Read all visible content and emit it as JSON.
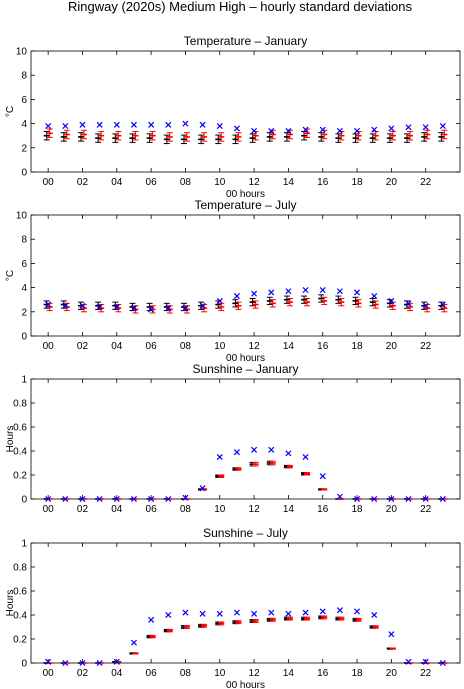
{
  "figure_title": "Ringway (2020s) Medium High – hourly standard deviations",
  "chart_data": [
    {
      "type": "errorbar",
      "title": "Temperature – January",
      "xlabel": "00 hours",
      "ylabel": "°C",
      "ylim": [
        0,
        10
      ],
      "yticks": [
        0,
        2,
        4,
        6,
        8,
        10
      ],
      "xlim": [
        -1,
        24
      ],
      "xtick_labels": [
        "00",
        "02",
        "04",
        "06",
        "08",
        "10",
        "12",
        "14",
        "16",
        "18",
        "20",
        "22"
      ],
      "x": [
        0,
        1,
        2,
        3,
        4,
        5,
        6,
        7,
        8,
        9,
        10,
        11,
        12,
        13,
        14,
        15,
        16,
        17,
        18,
        19,
        20,
        21,
        22,
        23
      ],
      "observed_x": [
        3.8,
        3.8,
        3.9,
        3.9,
        3.9,
        3.9,
        3.9,
        3.9,
        4.0,
        3.9,
        3.8,
        3.6,
        3.4,
        3.4,
        3.4,
        3.5,
        3.5,
        3.4,
        3.4,
        3.5,
        3.6,
        3.7,
        3.7,
        3.8
      ],
      "red_mean": [
        3.2,
        3.1,
        3.1,
        3.0,
        3.0,
        3.0,
        3.0,
        2.9,
        2.9,
        2.9,
        2.9,
        2.9,
        3.0,
        3.1,
        3.1,
        3.2,
        3.1,
        3.0,
        3.0,
        3.0,
        3.0,
        3.0,
        3.1,
        3.1
      ],
      "red_err": [
        0.35,
        0.35,
        0.35,
        0.35,
        0.35,
        0.35,
        0.35,
        0.35,
        0.35,
        0.35,
        0.35,
        0.35,
        0.35,
        0.35,
        0.35,
        0.35,
        0.35,
        0.35,
        0.35,
        0.35,
        0.35,
        0.35,
        0.35,
        0.35
      ],
      "black_mean": [
        3.0,
        2.9,
        2.9,
        2.8,
        2.8,
        2.8,
        2.8,
        2.7,
        2.7,
        2.7,
        2.7,
        2.7,
        2.8,
        2.9,
        2.9,
        3.0,
        2.9,
        2.8,
        2.8,
        2.8,
        2.8,
        2.8,
        2.9,
        2.9
      ],
      "black_err": [
        0.35,
        0.35,
        0.35,
        0.35,
        0.35,
        0.35,
        0.35,
        0.35,
        0.35,
        0.35,
        0.35,
        0.35,
        0.35,
        0.35,
        0.35,
        0.35,
        0.35,
        0.35,
        0.35,
        0.35,
        0.35,
        0.35,
        0.35,
        0.35
      ]
    },
    {
      "type": "errorbar",
      "title": "Temperature – July",
      "xlabel": "00 hours",
      "ylabel": "°C",
      "ylim": [
        0,
        10
      ],
      "yticks": [
        0,
        2,
        4,
        6,
        8,
        10
      ],
      "xlim": [
        -1,
        24
      ],
      "xtick_labels": [
        "00",
        "02",
        "04",
        "06",
        "08",
        "10",
        "12",
        "14",
        "16",
        "18",
        "20",
        "22"
      ],
      "x": [
        0,
        1,
        2,
        3,
        4,
        5,
        6,
        7,
        8,
        9,
        10,
        11,
        12,
        13,
        14,
        15,
        16,
        17,
        18,
        19,
        20,
        21,
        22,
        23
      ],
      "observed_x": [
        2.6,
        2.5,
        2.5,
        2.4,
        2.4,
        2.3,
        2.2,
        2.3,
        2.3,
        2.5,
        2.9,
        3.3,
        3.5,
        3.6,
        3.7,
        3.8,
        3.8,
        3.7,
        3.6,
        3.3,
        2.9,
        2.7,
        2.5,
        2.6
      ],
      "red_mean": [
        2.4,
        2.4,
        2.3,
        2.3,
        2.3,
        2.2,
        2.2,
        2.2,
        2.2,
        2.3,
        2.4,
        2.5,
        2.6,
        2.7,
        2.8,
        2.8,
        2.9,
        2.8,
        2.7,
        2.6,
        2.5,
        2.4,
        2.3,
        2.3
      ],
      "red_err": [
        0.3,
        0.3,
        0.3,
        0.3,
        0.3,
        0.3,
        0.3,
        0.3,
        0.3,
        0.3,
        0.3,
        0.3,
        0.3,
        0.3,
        0.3,
        0.3,
        0.3,
        0.3,
        0.3,
        0.3,
        0.3,
        0.3,
        0.3,
        0.3
      ],
      "black_mean": [
        2.6,
        2.6,
        2.5,
        2.5,
        2.5,
        2.4,
        2.4,
        2.4,
        2.4,
        2.5,
        2.6,
        2.7,
        2.8,
        2.9,
        3.0,
        3.0,
        3.1,
        3.0,
        2.9,
        2.8,
        2.7,
        2.6,
        2.5,
        2.5
      ],
      "black_err": [
        0.3,
        0.3,
        0.3,
        0.3,
        0.3,
        0.3,
        0.3,
        0.3,
        0.3,
        0.3,
        0.3,
        0.3,
        0.3,
        0.3,
        0.3,
        0.3,
        0.3,
        0.3,
        0.3,
        0.3,
        0.3,
        0.3,
        0.3,
        0.3
      ]
    },
    {
      "type": "errorbar",
      "title": "Sunshine – January",
      "xlabel": "",
      "ylabel": "Hours",
      "ylim": [
        0,
        1
      ],
      "yticks": [
        0,
        0.2,
        0.4,
        0.6,
        0.8,
        1
      ],
      "xlim": [
        -1,
        24
      ],
      "xtick_labels": [
        "00",
        "02",
        "04",
        "06",
        "08",
        "10",
        "12",
        "14",
        "16",
        "18",
        "20",
        "22"
      ],
      "x": [
        0,
        1,
        2,
        3,
        4,
        5,
        6,
        7,
        8,
        9,
        10,
        11,
        12,
        13,
        14,
        15,
        16,
        17,
        18,
        19,
        20,
        21,
        22,
        23
      ],
      "observed_x": [
        0,
        0,
        0,
        0,
        0,
        0,
        0,
        0,
        0.01,
        0.09,
        0.35,
        0.39,
        0.41,
        0.41,
        0.38,
        0.35,
        0.19,
        0.02,
        0,
        0,
        0,
        0,
        0,
        0
      ],
      "red_mean": [
        0,
        0,
        0,
        0,
        0,
        0,
        0,
        0,
        0,
        0.08,
        0.19,
        0.25,
        0.29,
        0.3,
        0.27,
        0.21,
        0.08,
        0,
        0,
        0,
        0,
        0,
        0,
        0
      ],
      "red_err": [
        0,
        0,
        0,
        0,
        0,
        0,
        0,
        0,
        0,
        0.005,
        0.01,
        0.01,
        0.015,
        0.015,
        0.01,
        0.01,
        0.005,
        0,
        0,
        0,
        0,
        0,
        0,
        0
      ],
      "black_mean": [
        0,
        0,
        0,
        0,
        0,
        0,
        0,
        0,
        0,
        0.08,
        0.19,
        0.25,
        0.29,
        0.3,
        0.27,
        0.21,
        0.08,
        0,
        0,
        0,
        0,
        0,
        0,
        0
      ],
      "black_err": [
        0,
        0,
        0,
        0,
        0,
        0,
        0,
        0,
        0,
        0.005,
        0.01,
        0.01,
        0.015,
        0.015,
        0.01,
        0.01,
        0.005,
        0,
        0,
        0,
        0,
        0,
        0,
        0
      ]
    },
    {
      "type": "errorbar",
      "title": "Sunshine – July",
      "xlabel": "00 hours",
      "ylabel": "Hours",
      "ylim": [
        0,
        1
      ],
      "yticks": [
        0,
        0.2,
        0.4,
        0.6,
        0.8,
        1
      ],
      "xlim": [
        -1,
        24
      ],
      "xtick_labels": [
        "00",
        "02",
        "04",
        "06",
        "08",
        "10",
        "12",
        "14",
        "16",
        "18",
        "20",
        "22"
      ],
      "x": [
        0,
        1,
        2,
        3,
        4,
        5,
        6,
        7,
        8,
        9,
        10,
        11,
        12,
        13,
        14,
        15,
        16,
        17,
        18,
        19,
        20,
        21,
        22,
        23
      ],
      "observed_x": [
        0.01,
        0,
        0,
        0,
        0.01,
        0.17,
        0.36,
        0.4,
        0.42,
        0.41,
        0.41,
        0.42,
        0.41,
        0.42,
        0.41,
        0.42,
        0.43,
        0.44,
        0.43,
        0.4,
        0.24,
        0.01,
        0.01,
        0
      ],
      "red_mean": [
        0,
        0,
        0,
        0,
        0.01,
        0.08,
        0.22,
        0.27,
        0.3,
        0.31,
        0.33,
        0.34,
        0.35,
        0.36,
        0.37,
        0.37,
        0.38,
        0.37,
        0.36,
        0.3,
        0.12,
        0,
        0,
        0
      ],
      "red_err": [
        0,
        0,
        0,
        0,
        0,
        0.005,
        0.01,
        0.01,
        0.012,
        0.012,
        0.012,
        0.012,
        0.012,
        0.012,
        0.012,
        0.012,
        0.012,
        0.012,
        0.012,
        0.01,
        0.005,
        0,
        0,
        0
      ],
      "black_mean": [
        0,
        0,
        0,
        0,
        0.01,
        0.08,
        0.22,
        0.27,
        0.3,
        0.31,
        0.33,
        0.34,
        0.35,
        0.36,
        0.37,
        0.37,
        0.38,
        0.37,
        0.36,
        0.3,
        0.12,
        0,
        0,
        0
      ],
      "black_err": [
        0,
        0,
        0,
        0,
        0,
        0.005,
        0.01,
        0.01,
        0.012,
        0.012,
        0.012,
        0.012,
        0.012,
        0.012,
        0.012,
        0.012,
        0.012,
        0.012,
        0.012,
        0.01,
        0.005,
        0,
        0,
        0
      ]
    }
  ],
  "colors": {
    "observed_marker": "#0000ff",
    "red_series": "#ff0000",
    "black_series": "#000000",
    "axes": "#000000"
  }
}
